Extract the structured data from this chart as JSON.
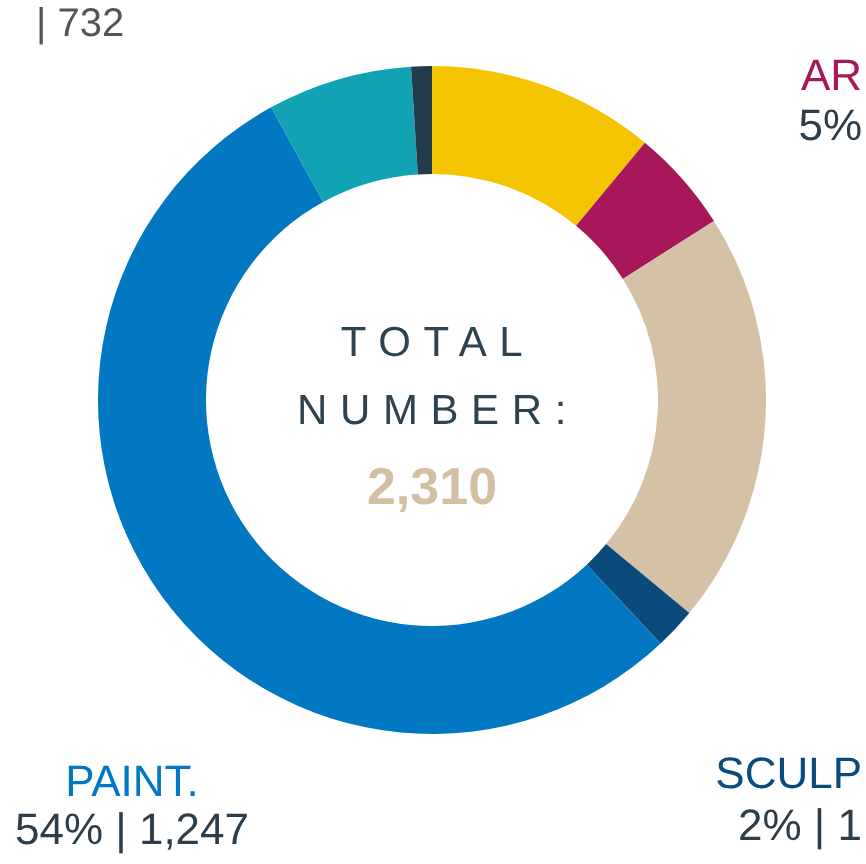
{
  "chart_data": {
    "type": "donut",
    "title": "TOTAL NUMBER:",
    "subtitle": "2,310",
    "categories": [
      null,
      "AR",
      null,
      "SCULP",
      "PAINT.",
      null,
      null
    ],
    "values": [
      11,
      5,
      20,
      2,
      54,
      7,
      1
    ],
    "colors": [
      "#f5c400",
      "#a8175a",
      "#d4c1a6",
      "#0b4b7c",
      "#0277c2",
      "#11a2b4",
      "#233c4c"
    ],
    "value_labels": [
      null,
      "5%",
      null,
      "2% | 1",
      "54% | 1,247",
      null,
      null
    ],
    "annotations": [
      "| 732"
    ]
  }
}
